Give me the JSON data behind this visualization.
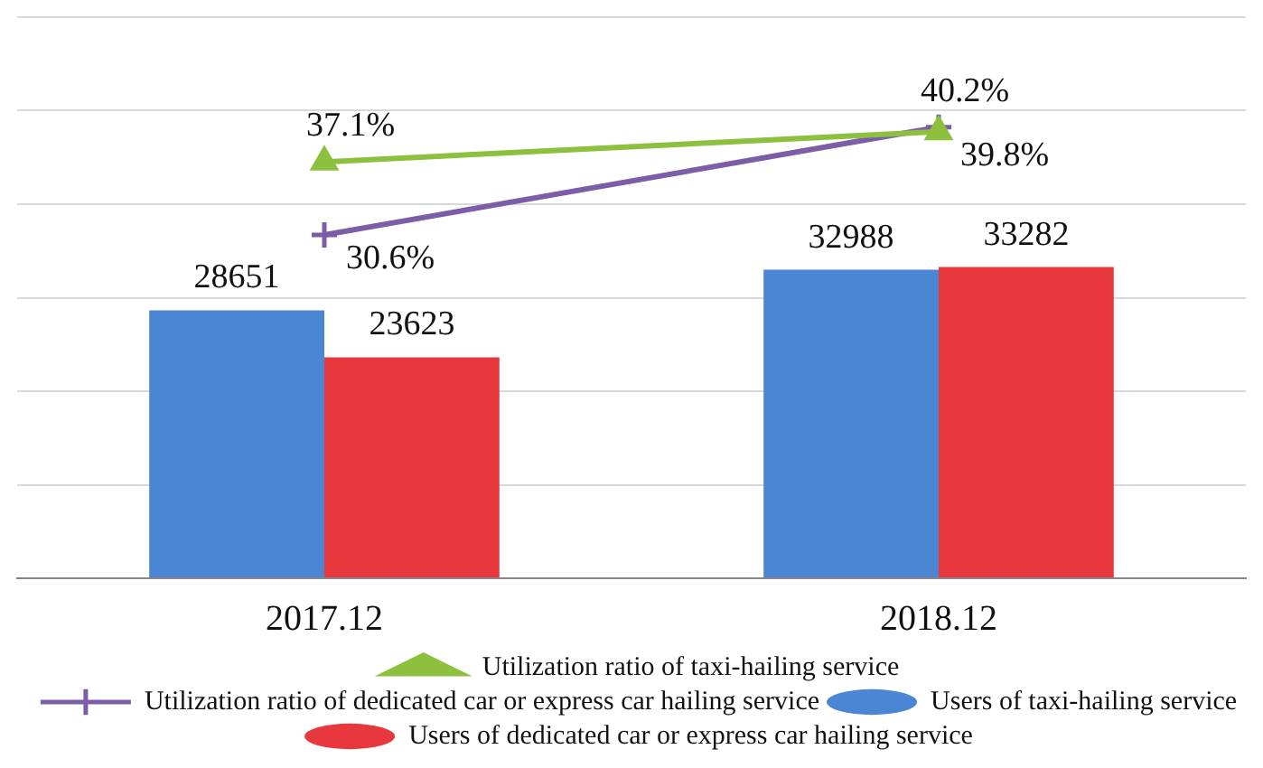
{
  "chart_data": {
    "type": "bar",
    "categories": [
      "2017.12",
      "2018.12"
    ],
    "series": [
      {
        "name": "Users of taxi-hailing service",
        "color": "#4a86d4",
        "values": [
          28651,
          32988
        ]
      },
      {
        "name": "Users of dedicated car or express car hailing service",
        "color": "#e8383d",
        "values": [
          23623,
          33282
        ]
      },
      {
        "name": "Utilization ratio of taxi-hailing service",
        "type": "line",
        "axis": "y2",
        "marker": "triangle",
        "color": "#8dc03f",
        "values": [
          37.1,
          39.8
        ],
        "value_labels": [
          "37.1%",
          "39.8%"
        ]
      },
      {
        "name": "Utilization ratio of dedicated car or express car hailing service",
        "type": "line",
        "axis": "y2",
        "marker": "cross",
        "color": "#7b5ea7",
        "values": [
          30.6,
          40.2
        ],
        "value_labels": [
          "30.6%",
          "40.2%"
        ]
      }
    ],
    "ylim": [
      0,
      60000
    ],
    "yticks": [
      0,
      10000,
      20000,
      30000,
      40000,
      50000,
      60000
    ],
    "y2lim": [
      0,
      50
    ],
    "tick_labels": "x",
    "grid": "y",
    "legend": "bottom",
    "data_labels": true
  }
}
